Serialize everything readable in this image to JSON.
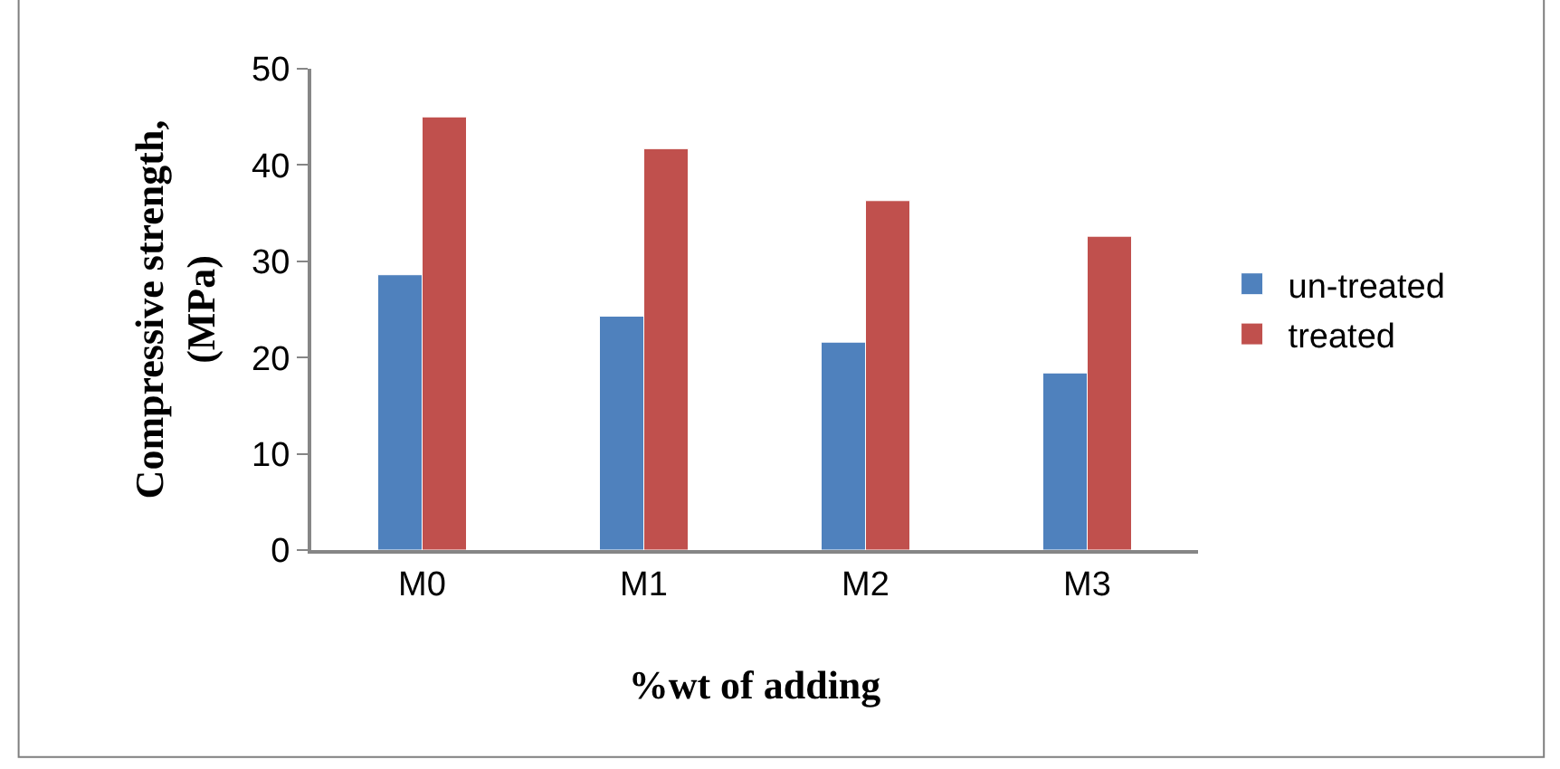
{
  "chart_data": {
    "type": "bar",
    "xlabel": "%wt of adding",
    "ylabel": "Compressive strength,\n(MPa)",
    "categories": [
      "M0",
      "M1",
      "M2",
      "M3"
    ],
    "series": [
      {
        "name": "un-treated",
        "color": "#4f81bd",
        "values": [
          28.6,
          24.3,
          21.6,
          18.4
        ]
      },
      {
        "name": "treated",
        "color": "#c0504d",
        "values": [
          45.0,
          41.7,
          36.3,
          32.6
        ]
      }
    ],
    "ylim": [
      0,
      50
    ],
    "yticks": [
      0,
      10,
      20,
      30,
      40,
      50
    ],
    "legend": "right"
  }
}
